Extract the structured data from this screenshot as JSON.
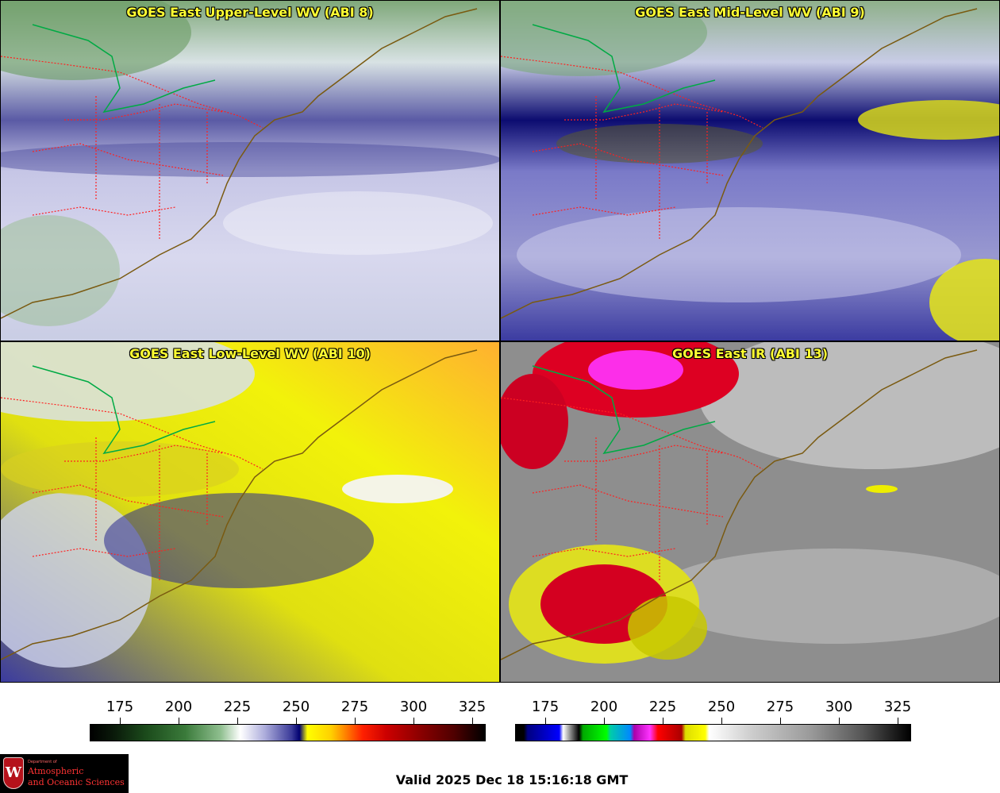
{
  "panels": [
    {
      "title": "GOES East Upper-Level WV (ABI 8)",
      "scheme": "upper"
    },
    {
      "title": "GOES East Mid-Level WV (ABI 9)",
      "scheme": "mid"
    },
    {
      "title": "GOES East Low-Level WV (ABI 10)",
      "scheme": "low"
    },
    {
      "title": "GOES East IR (ABI 13)",
      "scheme": "ir"
    }
  ],
  "colorbars": [
    {
      "ticks": [
        "175",
        "200",
        "225",
        "250",
        "275",
        "300",
        "325"
      ]
    },
    {
      "ticks": [
        "175",
        "200",
        "225",
        "250",
        "275",
        "300",
        "325"
      ]
    }
  ],
  "logo": {
    "line1": "Department of",
    "line2": "Atmospheric",
    "line3": "and Oceanic Sciences",
    "letter": "W"
  },
  "valid_text": "Valid 2025 Dec 18 15:16:18 GMT",
  "colors": {
    "title": "#ffff33",
    "border_state": "#ff2020",
    "coast": "#7a5a10",
    "intl": "#00aa44"
  }
}
